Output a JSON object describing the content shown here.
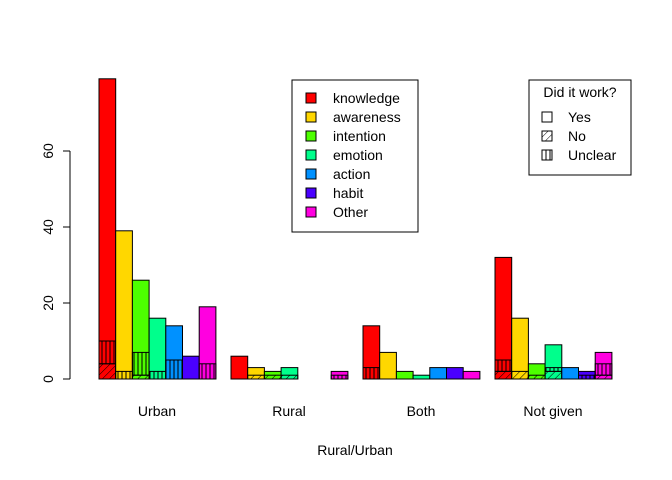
{
  "chart_data": {
    "type": "bar",
    "xlabel": "Rural/Urban",
    "ylabel": "",
    "ylim": [
      0,
      80
    ],
    "yticks": [
      0,
      20,
      40,
      60
    ],
    "grid": false,
    "categories": [
      "Urban",
      "Rural",
      "Both",
      "Not given"
    ],
    "series": [
      {
        "name": "knowledge",
        "color": "#ff0000",
        "values": [
          79,
          6,
          14,
          32
        ]
      },
      {
        "name": "awareness",
        "color": "#ffd700",
        "values": [
          39,
          3,
          7,
          16
        ]
      },
      {
        "name": "intention",
        "color": "#4dff00",
        "values": [
          26,
          2,
          2,
          4
        ]
      },
      {
        "name": "emotion",
        "color": "#00ff8c",
        "values": [
          16,
          3,
          1,
          9
        ]
      },
      {
        "name": "action",
        "color": "#0091ff",
        "values": [
          14,
          0,
          3,
          3
        ]
      },
      {
        "name": "habit",
        "color": "#4a00ff",
        "values": [
          6,
          0,
          3,
          2
        ]
      },
      {
        "name": "Other",
        "color": "#ff00e0",
        "values": [
          19,
          2,
          2,
          7
        ]
      }
    ],
    "outcome_breakdown": {
      "description": "Hatched sub-segments inside each bar, stacked from the baseline",
      "segments": [
        {
          "bar": "Urban knowledge",
          "No": 4,
          "Unclear": 6
        },
        {
          "bar": "Urban awareness",
          "No": 0,
          "Unclear": 2
        },
        {
          "bar": "Urban intention",
          "No": 1,
          "Unclear": 6
        },
        {
          "bar": "Urban emotion",
          "No": 0,
          "Unclear": 2
        },
        {
          "bar": "Urban action",
          "No": 0,
          "Unclear": 5
        },
        {
          "bar": "Urban Other",
          "No": 0,
          "Unclear": 4
        },
        {
          "bar": "Rural awareness",
          "No": 1,
          "Unclear": 0
        },
        {
          "bar": "Rural intention",
          "No": 1,
          "Unclear": 0
        },
        {
          "bar": "Rural emotion",
          "No": 1,
          "Unclear": 0
        },
        {
          "bar": "Rural Other",
          "No": 0,
          "Unclear": 1
        },
        {
          "bar": "Both knowledge",
          "No": 0,
          "Unclear": 3
        },
        {
          "bar": "Not given knowledge",
          "No": 2,
          "Unclear": 3
        },
        {
          "bar": "Not given awareness",
          "No": 2,
          "Unclear": 0
        },
        {
          "bar": "Not given intention",
          "No": 1,
          "Unclear": 0
        },
        {
          "bar": "Not given emotion",
          "No": 2,
          "Unclear": 1
        },
        {
          "bar": "Not given habit",
          "No": 0,
          "Unclear": 1
        },
        {
          "bar": "Not given Other",
          "No": 1,
          "Unclear": 3
        }
      ]
    },
    "legend_categories": {
      "placement": "top-center",
      "items": [
        "knowledge",
        "awareness",
        "intention",
        "emotion",
        "action",
        "habit",
        "Other"
      ]
    },
    "legend_outcome": {
      "placement": "top-right",
      "title": "Did it work?",
      "items": [
        {
          "label": "Yes",
          "pattern": "none"
        },
        {
          "label": "No",
          "pattern": "diagonal"
        },
        {
          "label": "Unclear",
          "pattern": "vertical"
        }
      ]
    }
  }
}
